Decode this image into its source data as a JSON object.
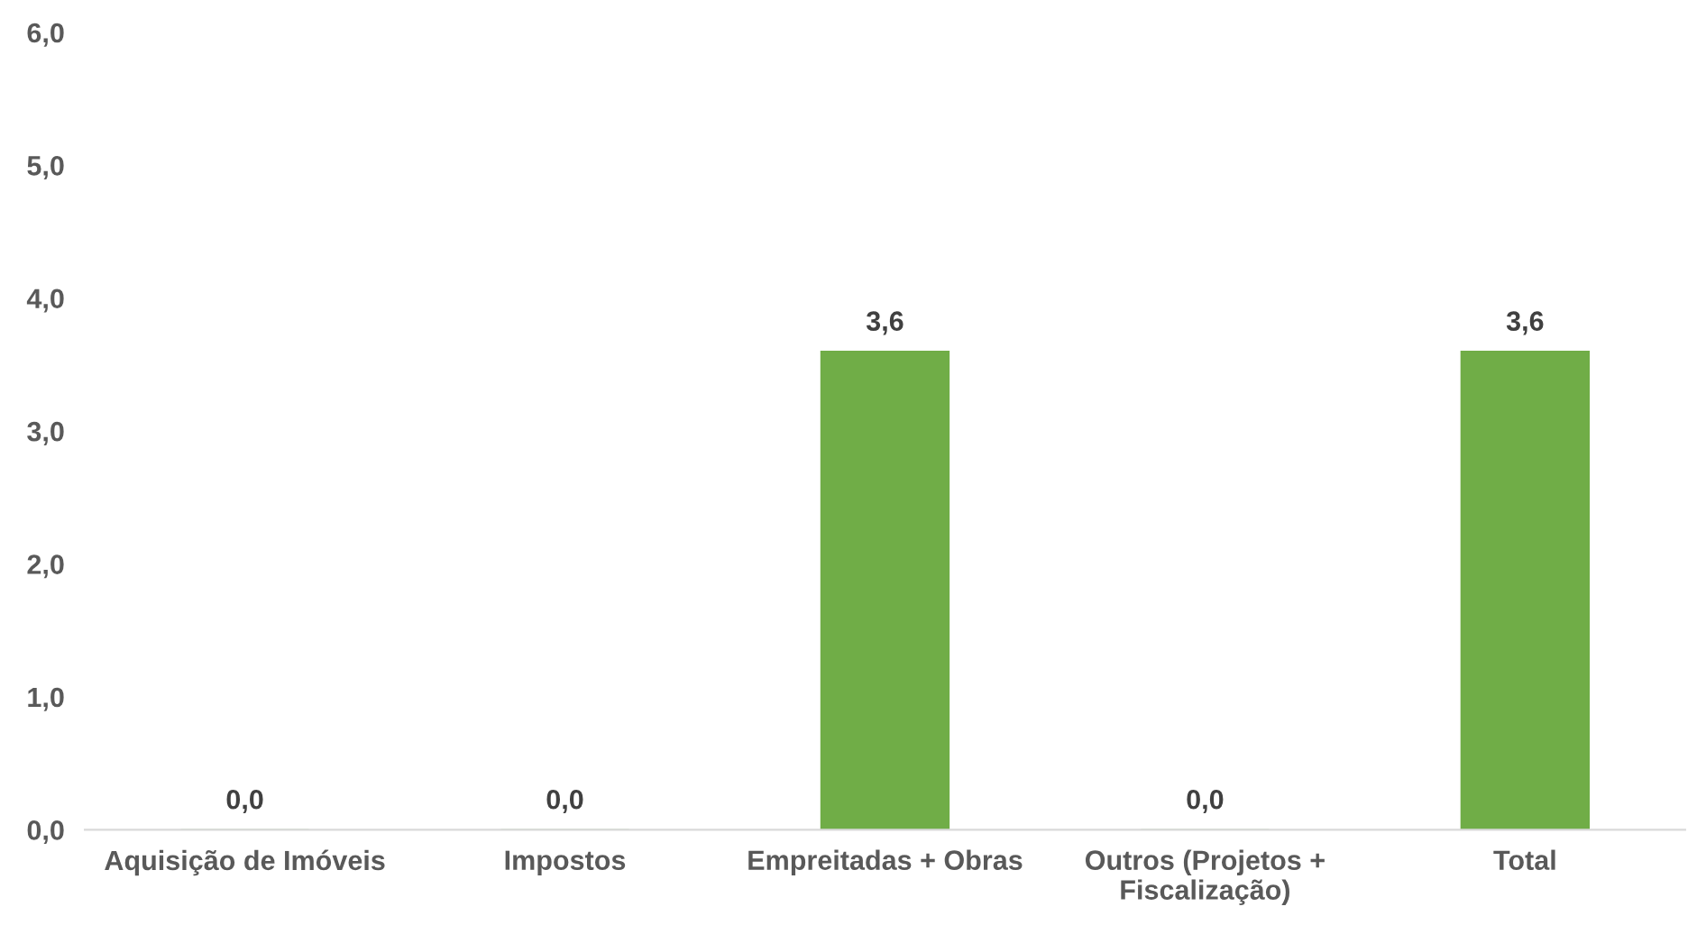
{
  "chart_data": {
    "type": "bar",
    "categories": [
      "Aquisição de Imóveis",
      "Impostos",
      "Empreitadas + Obras",
      "Outros (Projetos +\nFiscalização)",
      "Total"
    ],
    "values": [
      0.0,
      0.0,
      3.6,
      0.0,
      3.6
    ],
    "color": "#70ad47",
    "value_labels": [
      "0,0",
      "0,0",
      "3,6",
      "0,0",
      "3,6"
    ],
    "ylim": [
      0,
      6
    ],
    "yticks": [
      {
        "value": 0,
        "label": "0,0"
      },
      {
        "value": 1,
        "label": "1,0"
      },
      {
        "value": 2,
        "label": "2,0"
      },
      {
        "value": 3,
        "label": "3,0"
      },
      {
        "value": 4,
        "label": "4,0"
      },
      {
        "value": 5,
        "label": "5,0"
      },
      {
        "value": 6,
        "label": "6,0"
      }
    ],
    "grid": false,
    "legend": false
  }
}
